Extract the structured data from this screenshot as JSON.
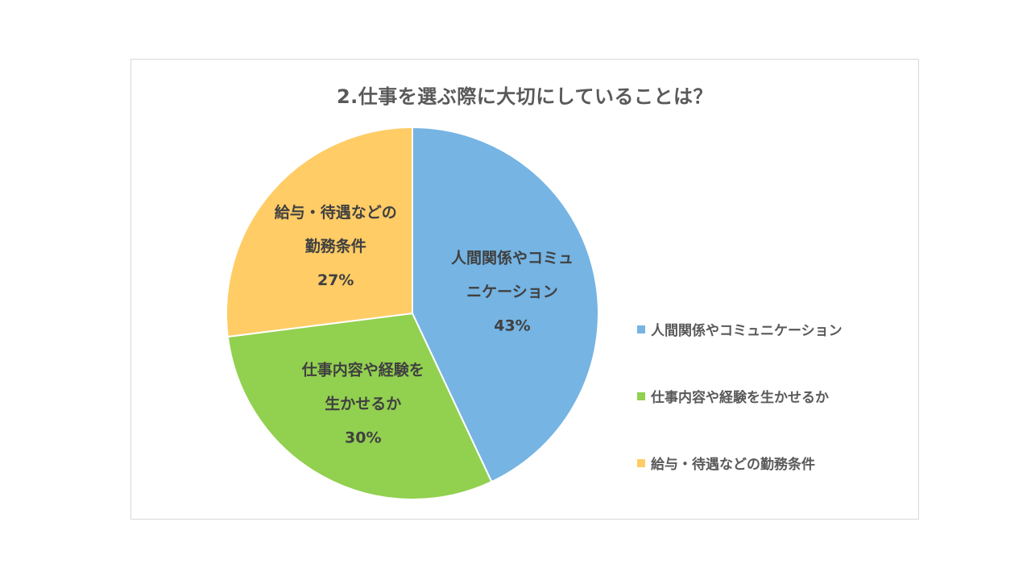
{
  "chart_data": {
    "type": "pie",
    "title": "2.仕事を選ぶ際に大切にしていることは？",
    "slices": [
      {
        "label": "人間関係やコミュニケーション",
        "label_lines": [
          "人間関係やコミュ",
          "ニケーション"
        ],
        "value": 43,
        "value_label": "43%",
        "color": "#75b4e3"
      },
      {
        "label": "仕事内容や経験を生かせるか",
        "label_lines": [
          "仕事内容や経験を",
          "生かせるか"
        ],
        "value": 30,
        "value_label": "30%",
        "color": "#92d050"
      },
      {
        "label": "給与・待遇などの勤務条件",
        "label_lines": [
          "給与・待遇などの",
          "勤務条件"
        ],
        "value": 27,
        "value_label": "27%",
        "color": "#ffcc66"
      }
    ],
    "start_angle": "12 o'clock",
    "direction": "clockwise",
    "legend_position": "right"
  }
}
